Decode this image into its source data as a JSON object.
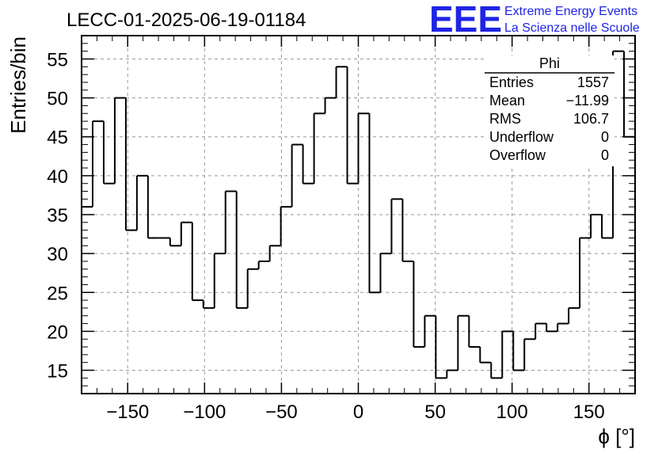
{
  "header": {
    "run_title": "LECC-01-2025-06-19-01184",
    "logo_text": "EEE",
    "logo_line1": "Extreme Energy Events",
    "logo_line2": "La Scienza nelle Scuole"
  },
  "stats_box": {
    "title": "Phi",
    "rows": [
      {
        "label": "Entries",
        "value": "1557"
      },
      {
        "label": "Mean",
        "value": "−11.99"
      },
      {
        "label": "RMS",
        "value": "106.7"
      },
      {
        "label": "Underflow",
        "value": "0"
      },
      {
        "label": "Overflow",
        "value": "0"
      }
    ]
  },
  "chart_data": {
    "type": "histogram",
    "xlabel": "ϕ [°]",
    "ylabel": "Entries/bin",
    "xlim": [
      -180,
      180
    ],
    "ylim": [
      12,
      58
    ],
    "bin_width": 7.2,
    "grid": true,
    "x_ticks": [
      -150,
      -100,
      -50,
      0,
      50,
      100,
      150
    ],
    "x_tick_labels": [
      "−150",
      "−100",
      "−50",
      "0",
      "50",
      "100",
      "150"
    ],
    "y_ticks": [
      15,
      20,
      25,
      30,
      35,
      40,
      45,
      50,
      55
    ],
    "y_tick_labels": [
      "15",
      "20",
      "25",
      "30",
      "35",
      "40",
      "45",
      "50",
      "55"
    ],
    "values": [
      36,
      47,
      39,
      50,
      33,
      40,
      32,
      32,
      31,
      34,
      24,
      23,
      30,
      38,
      23,
      28,
      29,
      31,
      36,
      44,
      39,
      48,
      50,
      54,
      39,
      48,
      25,
      30,
      37,
      29,
      18,
      22,
      14,
      15,
      22,
      18,
      16,
      14,
      20,
      15,
      19,
      21,
      20,
      21,
      23,
      32,
      35,
      32,
      56,
      45
    ],
    "line_color": "#000000",
    "grid_color": "#999999"
  },
  "colors": {
    "logo": "#1f24e6",
    "text": "#000000"
  }
}
